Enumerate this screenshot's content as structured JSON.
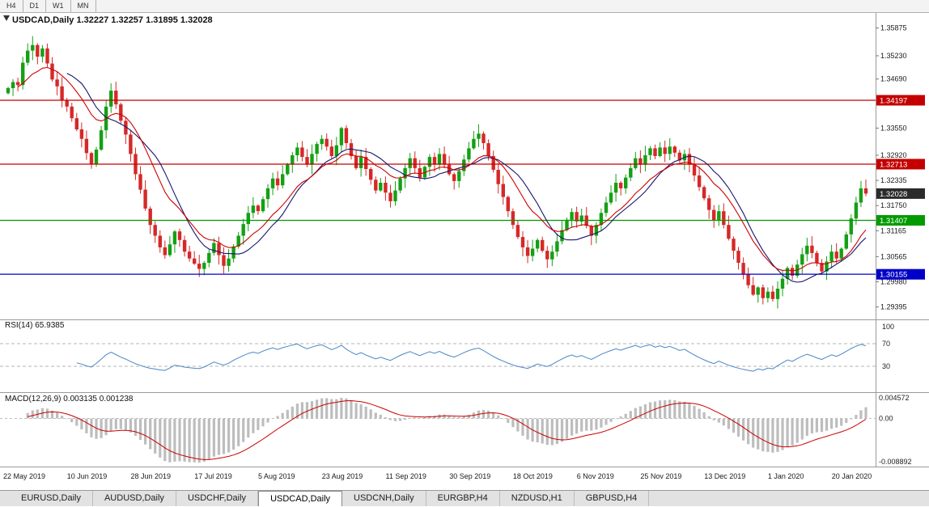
{
  "period_bar": {
    "items": [
      "H4",
      "D1",
      "W1",
      "MN"
    ]
  },
  "main_chart": {
    "header": "USDCAD,Daily 1.32227 1.32257 1.31895 1.32028",
    "symbol": "USDCAD,Daily",
    "open": "1.32227",
    "high": "1.32257",
    "low": "1.31895",
    "close": "1.32028"
  },
  "price_axis": {
    "ticks": [
      {
        "label": "1.35875",
        "value": 1.35875
      },
      {
        "label": "1.35230",
        "value": 1.3523
      },
      {
        "label": "1.34690",
        "value": 1.3469
      },
      {
        "label": "1.33550",
        "value": 1.3355
      },
      {
        "label": "1.32920",
        "value": 1.3292
      },
      {
        "label": "1.32335",
        "value": 1.32335
      },
      {
        "label": "1.31750",
        "value": 1.3175
      },
      {
        "label": "1.31165",
        "value": 1.31165
      },
      {
        "label": "1.30565",
        "value": 1.30565
      },
      {
        "label": "1.29980",
        "value": 1.2998
      },
      {
        "label": "1.29395",
        "value": 1.29395
      }
    ]
  },
  "levels": [
    {
      "label": "1.34197",
      "value": 1.34197,
      "color": "#c40000"
    },
    {
      "label": "1.32713",
      "value": 1.32713,
      "color": "#c40000"
    },
    {
      "label": "1.31407",
      "value": 1.31407,
      "color": "#009b00"
    },
    {
      "label": "1.30155",
      "value": 1.30155,
      "color": "#0000c8"
    }
  ],
  "current_price": {
    "label": "1.32028",
    "value": 1.32028,
    "color": "#2b2b2b"
  },
  "rsi_panel": {
    "label": "RSI(14) 65.9385",
    "value": 65.9385,
    "line_color": "#4a86c8",
    "upper_level": 70,
    "lower_level": 30,
    "axis_labels": [
      {
        "label": "100",
        "value": 100
      },
      {
        "label": "70",
        "value": 70
      },
      {
        "label": "30",
        "value": 30
      }
    ]
  },
  "macd_panel": {
    "label": "MACD(12,26,9) 0.003135 0.001238",
    "macd_value": 0.003135,
    "signal_value": 0.001238,
    "histogram_color": "#bdbdbd",
    "signal_color": "#cc0000",
    "axis_labels": {
      "top": "0.004572",
      "zero": "0.00",
      "bottom": "-0.008892"
    }
  },
  "bottom_tabs": {
    "items": [
      {
        "label": "EURUSD,Daily",
        "active": false
      },
      {
        "label": "AUDUSD,Daily",
        "active": false
      },
      {
        "label": "USDCHF,Daily",
        "active": false
      },
      {
        "label": "USDCAD,Daily",
        "active": true
      },
      {
        "label": "USDCNH,Daily",
        "active": false
      },
      {
        "label": "EURGBP,H4",
        "active": false
      },
      {
        "label": "NZDUSD,H1",
        "active": false
      },
      {
        "label": "GBPUSD,H4",
        "active": false
      }
    ]
  },
  "chart_data": {
    "type": "candlestick",
    "symbol": "USDCAD",
    "timeframe": "Daily",
    "y_min": 1.292,
    "y_max": 1.3615,
    "bars_per_label": 13,
    "date_labels": [
      "22 May 2019",
      "10 Jun 2019",
      "28 Jun 2019",
      "17 Jul 2019",
      "5 Aug 2019",
      "23 Aug 2019",
      "11 Sep 2019",
      "30 Sep 2019",
      "18 Oct 2019",
      "6 Nov 2019",
      "25 Nov 2019",
      "13 Dec 2019",
      "1 Jan 2020",
      "20 Jan 2020"
    ],
    "up_color": "#14a014",
    "down_color": "#d62828",
    "ma_fast": {
      "type": "EMA",
      "period": 13,
      "color": "#cc0000"
    },
    "ma_slow": {
      "type": "SMA",
      "period": 13,
      "color": "#16166e"
    },
    "rsi_period": 14,
    "macd_params": [
      12,
      26,
      9
    ],
    "levels": [
      1.34197,
      1.32713,
      1.31407,
      1.30155
    ],
    "closes": [
      1.3448,
      1.3462,
      1.3455,
      1.3507,
      1.3535,
      1.3548,
      1.3521,
      1.354,
      1.3505,
      1.3468,
      1.3452,
      1.342,
      1.3405,
      1.3378,
      1.3352,
      1.333,
      1.3297,
      1.3272,
      1.3305,
      1.335,
      1.3405,
      1.3442,
      1.341,
      1.3372,
      1.334,
      1.3295,
      1.3248,
      1.3212,
      1.3168,
      1.313,
      1.3105,
      1.3078,
      1.306,
      1.3085,
      1.3115,
      1.3095,
      1.3068,
      1.3052,
      1.304,
      1.3028,
      1.3042,
      1.3065,
      1.3088,
      1.306,
      1.3035,
      1.3052,
      1.308,
      1.3105,
      1.3132,
      1.3158,
      1.3175,
      1.3162,
      1.319,
      1.3215,
      1.3238,
      1.3222,
      1.3248,
      1.327,
      1.3292,
      1.331,
      1.3288,
      1.327,
      1.3295,
      1.3318,
      1.333,
      1.3312,
      1.329,
      1.3315,
      1.3355,
      1.332,
      1.329,
      1.3262,
      1.3288,
      1.326,
      1.3235,
      1.321,
      1.3228,
      1.3205,
      1.3185,
      1.321,
      1.3238,
      1.3262,
      1.3285,
      1.3262,
      1.324,
      1.3265,
      1.3288,
      1.327,
      1.3295,
      1.327,
      1.3248,
      1.3232,
      1.3255,
      1.3282,
      1.3308,
      1.333,
      1.3342,
      1.332,
      1.329,
      1.3258,
      1.3225,
      1.3195,
      1.3162,
      1.313,
      1.3102,
      1.3078,
      1.3058,
      1.3075,
      1.3095,
      1.307,
      1.305,
      1.3068,
      1.3092,
      1.3118,
      1.3142,
      1.316,
      1.3138,
      1.3152,
      1.3128,
      1.3105,
      1.313,
      1.3158,
      1.3182,
      1.3205,
      1.3228,
      1.3215,
      1.324,
      1.3262,
      1.3285,
      1.327,
      1.3292,
      1.3308,
      1.329,
      1.331,
      1.3295,
      1.3312,
      1.3298,
      1.328,
      1.3295,
      1.327,
      1.3245,
      1.3218,
      1.3192,
      1.3165,
      1.314,
      1.3162,
      1.313,
      1.3098,
      1.307,
      1.3042,
      1.3015,
      1.299,
      1.2968,
      1.2985,
      1.296,
      1.2975,
      1.2958,
      1.2982,
      1.3005,
      1.303,
      1.3012,
      1.3038,
      1.3062,
      1.3082,
      1.3065,
      1.3042,
      1.3022,
      1.3045,
      1.3068,
      1.3052,
      1.3075,
      1.3108,
      1.3145,
      1.3182,
      1.3215,
      1.32028
    ]
  }
}
